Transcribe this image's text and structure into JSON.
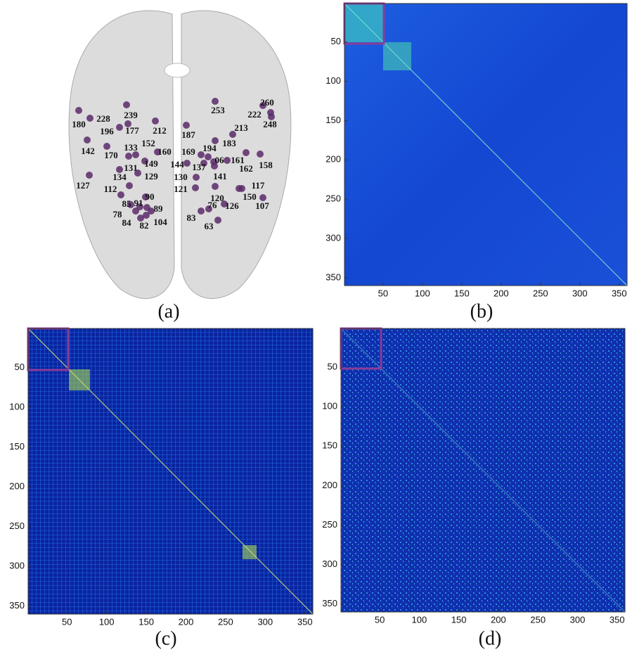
{
  "panels": [
    {
      "label": "(a)",
      "nodes": [
        "260",
        "253",
        "222",
        "248",
        "239",
        "228",
        "180",
        "196",
        "177",
        "212",
        "187",
        "213",
        "183",
        "142",
        "170",
        "133",
        "152",
        "160",
        "169",
        "194",
        "06",
        "161",
        "162",
        "158",
        "149",
        "144",
        "137",
        "131",
        "129",
        "130",
        "141",
        "134",
        "127",
        "112",
        "121",
        "117",
        "90",
        "120",
        "150",
        "126",
        "107",
        "85",
        "91",
        "89",
        "76",
        "78",
        "84",
        "82",
        "104",
        "83",
        "63"
      ]
    },
    {
      "label": "(b)",
      "xlim": [
        1,
        360
      ],
      "ylim": [
        1,
        360
      ],
      "xticks": [
        50,
        100,
        150,
        200,
        250,
        300,
        350
      ],
      "yticks": [
        50,
        100,
        150,
        200,
        250,
        300,
        350
      ]
    },
    {
      "label": "(c)",
      "xlim": [
        1,
        360
      ],
      "ylim": [
        1,
        360
      ],
      "xticks": [
        50,
        100,
        150,
        200,
        250,
        300,
        350
      ],
      "yticks": [
        50,
        100,
        150,
        200,
        250,
        300,
        350
      ]
    },
    {
      "label": "(d)",
      "xlim": [
        1,
        360
      ],
      "ylim": [
        1,
        360
      ],
      "xticks": [
        50,
        100,
        150,
        200,
        250,
        300,
        350
      ],
      "yticks": [
        50,
        100,
        150,
        200,
        250,
        300,
        350
      ]
    }
  ]
}
